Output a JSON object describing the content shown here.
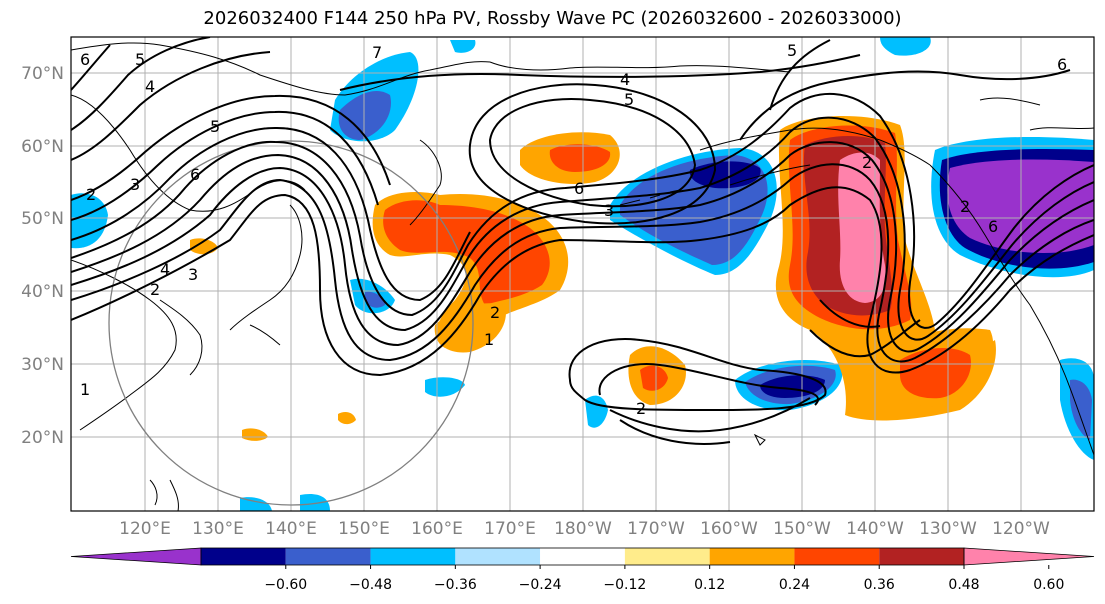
{
  "title": "2026032400 F144 250 hPa PV, Rossby Wave PC (2026032600 - 2026033000)",
  "axes": {
    "lat_labels": [
      "70°N",
      "60°N",
      "50°N",
      "40°N",
      "30°N",
      "20°N"
    ],
    "lon_labels": [
      "120°E",
      "130°E",
      "140°E",
      "150°E",
      "160°E",
      "170°E",
      "180°W",
      "170°W",
      "160°W",
      "150°W",
      "140°W",
      "130°W",
      "120°W"
    ]
  },
  "colorbar": {
    "colors": [
      "#9932cc",
      "#00008b",
      "#3a5fcd",
      "#00bfff",
      "#b0e2ff",
      "#ffffff",
      "#ffec8b",
      "#ffa500",
      "#ff4500",
      "#b22222",
      "#ff82ab"
    ],
    "ticks": [
      "−0.60",
      "−0.48",
      "−0.36",
      "−0.24",
      "−0.12",
      "0.12",
      "0.24",
      "0.36",
      "0.48",
      "0.60"
    ]
  },
  "contour_labels": [
    "6",
    "5",
    "4",
    "7",
    "5",
    "6",
    "3",
    "2",
    "4",
    "3",
    "2",
    "1",
    "2",
    "1",
    "6",
    "5",
    "3",
    "2",
    "2",
    "4",
    "5",
    "6",
    "2",
    "6"
  ]
}
